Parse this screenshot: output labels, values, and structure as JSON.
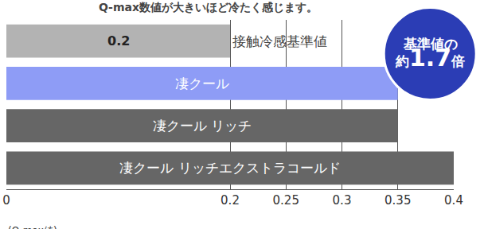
{
  "chart_data": {
    "type": "bar",
    "orientation": "horizontal",
    "title": "Q-max数値が大きいほど冷たく感じます。",
    "x_label": "(Q-max値)",
    "categories": [
      "接触冷感基準値",
      "凄クール",
      "凄クール リッチ",
      "凄クール リッチエクストラコールド"
    ],
    "values": [
      0.2,
      0.35,
      0.35,
      0.4
    ],
    "colors": [
      "#b3b3b3",
      "#8e9cf6",
      "#666666",
      "#666666"
    ],
    "xlim": [
      0,
      0.4
    ],
    "xticks": [
      0,
      0.2,
      0.25,
      0.3,
      0.35,
      0.4
    ],
    "grid": true,
    "tick_labels": "x",
    "annotations": [
      {
        "text": "0.2",
        "category": "接触冷感基準値"
      }
    ],
    "badge": {
      "line1": "基準値の",
      "prefix": "約",
      "emphasis": "1.7",
      "suffix": "倍"
    }
  }
}
